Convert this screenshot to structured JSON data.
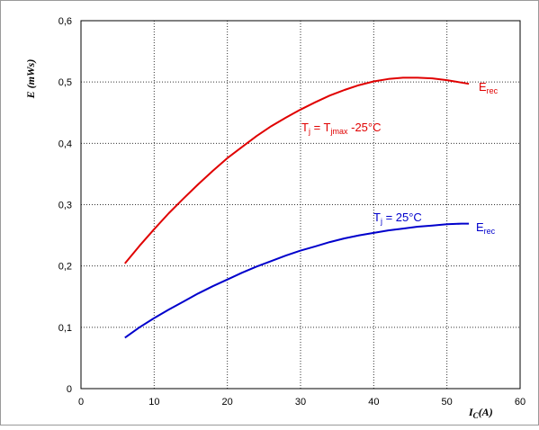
{
  "chart_data": {
    "type": "line",
    "xlabel": {
      "main": "I",
      "sub": "C",
      "tail": "(A)"
    },
    "ylabel": "E (mWs)",
    "xlim": [
      0,
      60
    ],
    "ylim": [
      0,
      0.6
    ],
    "xticks": [
      0,
      10,
      20,
      30,
      40,
      50,
      60
    ],
    "yticks": [
      0,
      0.1,
      0.2,
      0.3,
      0.4,
      0.5,
      0.6
    ],
    "xtick_labels": [
      "0",
      "10",
      "20",
      "30",
      "40",
      "50",
      "60"
    ],
    "ytick_labels": [
      "0",
      "0,1",
      "0,2",
      "0,3",
      "0,4",
      "0,5",
      "0,6"
    ],
    "grid": true,
    "series": [
      {
        "color": "#e00000",
        "x": [
          6,
          8,
          10,
          12,
          14,
          16,
          18,
          20,
          22,
          24,
          26,
          28,
          30,
          32,
          34,
          36,
          38,
          40,
          42,
          44,
          46,
          48,
          50,
          52,
          53
        ],
        "y": [
          0.204,
          0.233,
          0.26,
          0.286,
          0.31,
          0.333,
          0.355,
          0.376,
          0.394,
          0.412,
          0.428,
          0.442,
          0.455,
          0.467,
          0.478,
          0.487,
          0.495,
          0.501,
          0.505,
          0.507,
          0.507,
          0.506,
          0.503,
          0.499,
          0.497
        ],
        "label": {
          "main": "E",
          "sub": "rec"
        },
        "annotation": {
          "parts": [
            {
              "t": "T",
              "sub": false
            },
            {
              "t": "j",
              "sub": true
            },
            {
              "t": " = T",
              "sub": false
            },
            {
              "t": "jmax",
              "sub": true
            },
            {
              "t": " -25°C",
              "sub": false
            }
          ]
        }
      },
      {
        "color": "#0000cc",
        "x": [
          6,
          8,
          10,
          12,
          14,
          16,
          18,
          20,
          22,
          24,
          26,
          28,
          30,
          32,
          34,
          36,
          38,
          40,
          42,
          44,
          46,
          48,
          50,
          52,
          53
        ],
        "y": [
          0.083,
          0.1,
          0.115,
          0.129,
          0.142,
          0.155,
          0.167,
          0.178,
          0.189,
          0.199,
          0.208,
          0.217,
          0.225,
          0.232,
          0.239,
          0.245,
          0.25,
          0.254,
          0.258,
          0.261,
          0.264,
          0.266,
          0.268,
          0.269,
          0.269
        ],
        "label": {
          "main": "E",
          "sub": "rec"
        },
        "annotation": {
          "parts": [
            {
              "t": "T",
              "sub": false
            },
            {
              "t": "j",
              "sub": true
            },
            {
              "t": " = 25°C",
              "sub": false
            }
          ]
        }
      }
    ]
  }
}
